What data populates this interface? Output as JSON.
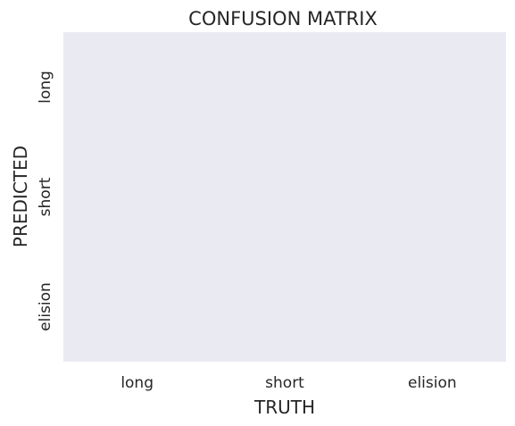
{
  "chart_data": {
    "type": "heatmap",
    "title": "CONFUSION MATRIX",
    "xlabel": "TRUTH",
    "ylabel": "PREDICTED",
    "x_categories": [
      "long",
      "short",
      "elision"
    ],
    "y_categories": [
      "long",
      "short",
      "elision"
    ],
    "values": [],
    "grid": false,
    "colors": {
      "plot_background": "#eaeaf2",
      "text": "#262626"
    }
  }
}
